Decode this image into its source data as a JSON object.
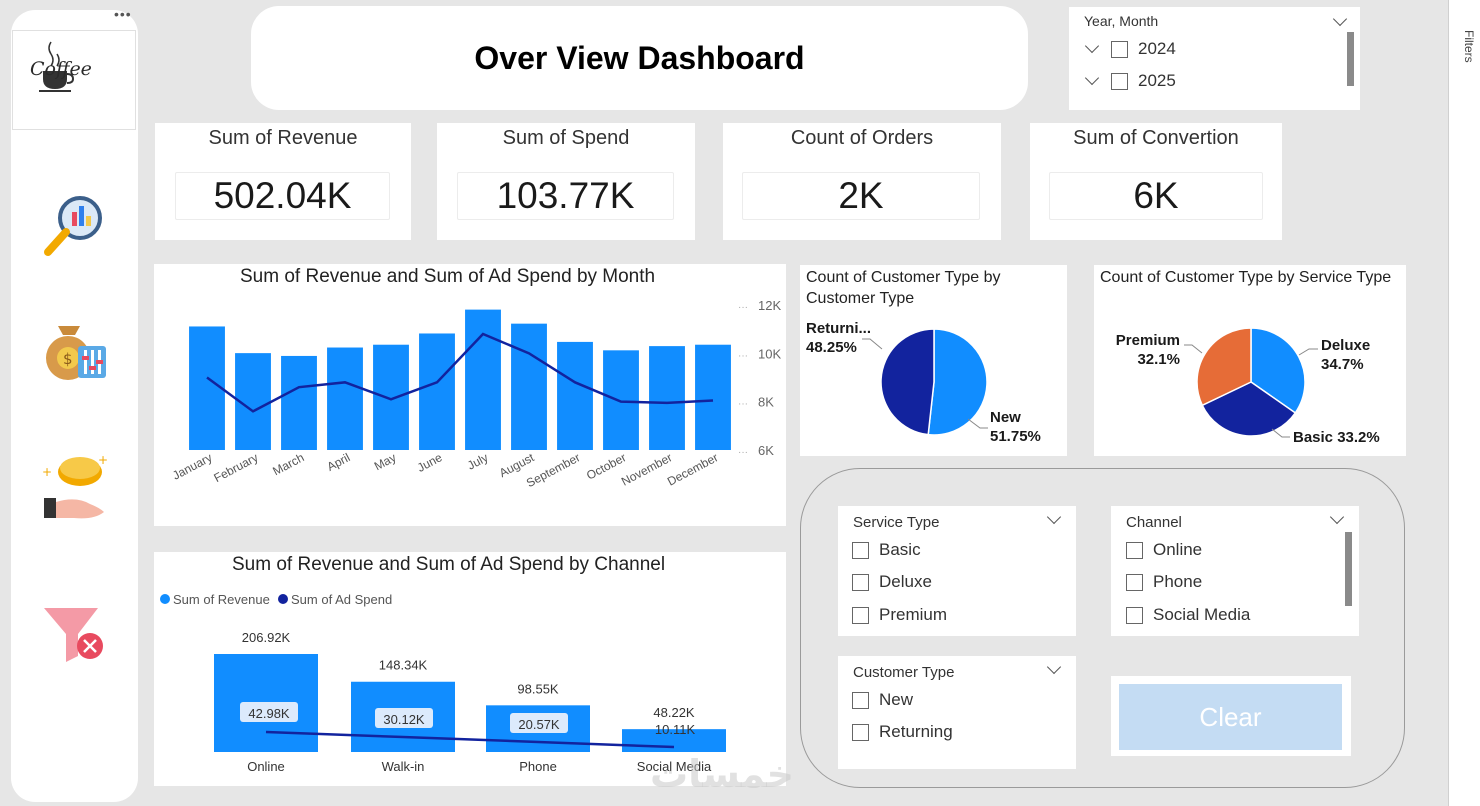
{
  "title": "Over View Dashboard",
  "logo": {
    "text": "Coffee"
  },
  "kpis": [
    {
      "title": "Sum of Revenue",
      "value": "502.04K"
    },
    {
      "title": "Sum of Spend",
      "value": "103.77K"
    },
    {
      "title": "Count of Orders",
      "value": "2K"
    },
    {
      "title": "Sum of Convertion",
      "value": "6K"
    }
  ],
  "year_slicer": {
    "title": "Year, Month",
    "items": [
      "2024",
      "2025"
    ]
  },
  "service_slicer": {
    "title": "Service Type",
    "items": [
      "Basic",
      "Deluxe",
      "Premium"
    ]
  },
  "channel_slicer": {
    "title": "Channel",
    "items": [
      "Online",
      "Phone",
      "Social Media"
    ]
  },
  "customer_slicer": {
    "title": "Customer Type",
    "items": [
      "New",
      "Returning"
    ]
  },
  "clear_button": {
    "label": "Clear"
  },
  "filters_label": "Filters",
  "watermark": "خمسات",
  "colors": {
    "revenue": "#118dff",
    "spend": "#12239e",
    "premium": "#e66c37",
    "panel_bg": "#e6e6e6"
  },
  "chart_data": [
    {
      "id": "monthly",
      "type": "bar",
      "title": "Sum of Revenue and Sum of Ad Spend by Month",
      "categories": [
        "January",
        "February",
        "March",
        "April",
        "May",
        "June",
        "July",
        "August",
        "September",
        "October",
        "November",
        "December"
      ],
      "series": [
        {
          "name": "Sum of Revenue",
          "type": "bar",
          "values": [
            44000,
            34500,
            33500,
            36500,
            37500,
            41500,
            50000,
            45000,
            38500,
            35500,
            37000,
            37500
          ]
        },
        {
          "name": "Sum of Ad Spend",
          "type": "line",
          "axis": "right",
          "values": [
            9000,
            7600,
            8600,
            8800,
            8100,
            8800,
            10800,
            10000,
            8800,
            8000,
            7950,
            8050
          ]
        }
      ],
      "y2_ticks": [
        "12K",
        "10K",
        "8K",
        "6K"
      ],
      "y2lim": [
        6000,
        12000
      ],
      "ylim": [
        0,
        52000
      ]
    },
    {
      "id": "channel",
      "type": "bar",
      "title": "Sum of Revenue and Sum of Ad Spend by Channel",
      "legend": [
        "Sum of Revenue",
        "Sum of Ad Spend"
      ],
      "categories": [
        "Online",
        "Walk-in",
        "Phone",
        "Social Media"
      ],
      "series": [
        {
          "name": "Sum of Revenue",
          "values": [
            206.92,
            148.34,
            98.55,
            48.22
          ],
          "labels": [
            "206.92K",
            "148.34K",
            "98.55K",
            "48.22K"
          ]
        },
        {
          "name": "Sum of Ad Spend",
          "values": [
            42.98,
            30.12,
            20.57,
            10.11
          ],
          "labels": [
            "42.98K",
            "30.12K",
            "20.57K",
            "10.11K"
          ]
        }
      ]
    },
    {
      "id": "customer_pie",
      "type": "pie",
      "title": "Count of Customer Type by Customer Type",
      "slices": [
        {
          "label": "New",
          "value": 51.75,
          "pct": "51.75%"
        },
        {
          "label": "Returni...",
          "value": 48.25,
          "pct": "48.25%"
        }
      ]
    },
    {
      "id": "service_pie",
      "type": "pie",
      "title": "Count of Customer Type by Service Type",
      "slices": [
        {
          "label": "Deluxe",
          "value": 34.7,
          "pct": "34.7%"
        },
        {
          "label": "Basic",
          "value": 33.2,
          "pct": "33.2%"
        },
        {
          "label": "Premium",
          "value": 32.1,
          "pct": "32.1%"
        }
      ]
    }
  ]
}
